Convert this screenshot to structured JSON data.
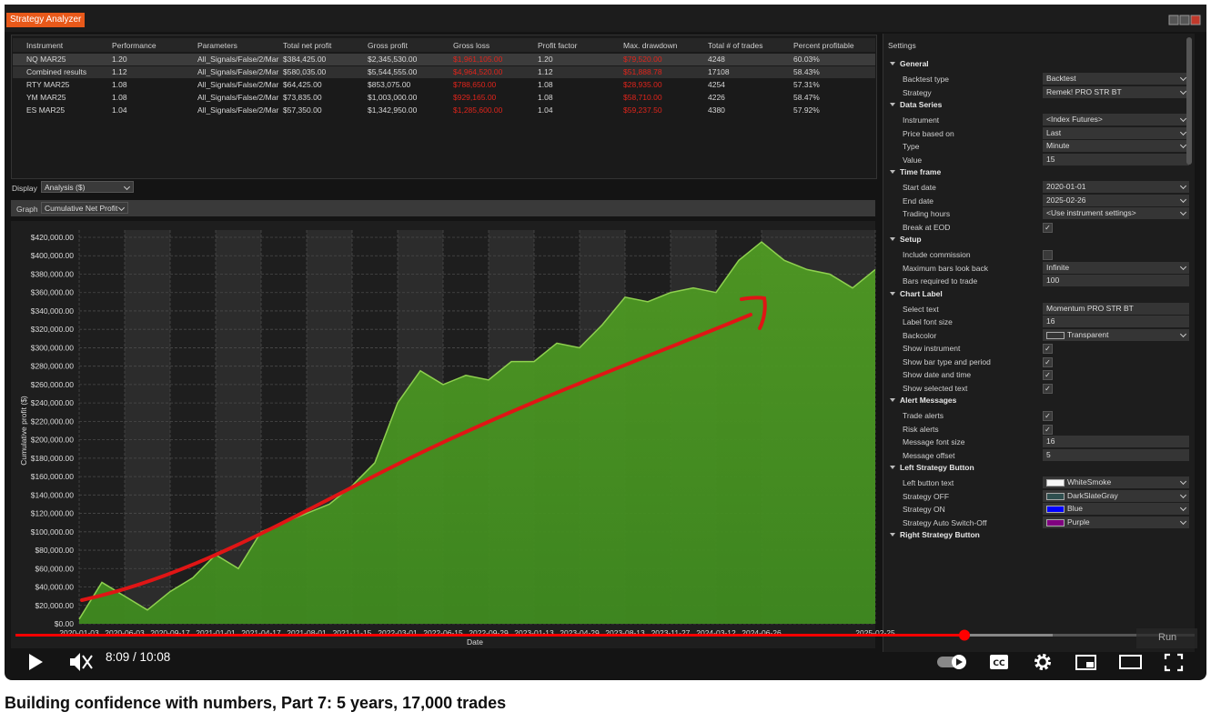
{
  "window": {
    "title": "Strategy Analyzer"
  },
  "table": {
    "columns": [
      "Instrument",
      "Performance",
      "Parameters",
      "Total net profit",
      "Gross profit",
      "Gross loss",
      "Profit factor",
      "Max. drawdown",
      "Total # of trades",
      "Percent profitable"
    ],
    "rows": [
      [
        "NQ MAR25",
        "1.20",
        "All_Signals/False/2/Mar",
        "$384,425.00",
        "$2,345,530.00",
        "$1,961,105.00",
        "1.20",
        "$79,520.00",
        "4248",
        "60.03%"
      ],
      [
        "Combined results",
        "1.12",
        "All_Signals/False/2/Mar",
        "$580,035.00",
        "$5,544,555.00",
        "$4,964,520.00",
        "1.12",
        "$51,888.78",
        "17108",
        "58.43%"
      ],
      [
        "RTY MAR25",
        "1.08",
        "All_Signals/False/2/Mar",
        "$64,425.00",
        "$853,075.00",
        "$788,650.00",
        "1.08",
        "$28,935.00",
        "4254",
        "57.31%"
      ],
      [
        "YM MAR25",
        "1.08",
        "All_Signals/False/2/Mar",
        "$73,835.00",
        "$1,003,000.00",
        "$929,165.00",
        "1.08",
        "$58,710.00",
        "4226",
        "58.47%"
      ],
      [
        "ES MAR25",
        "1.04",
        "All_Signals/False/2/Mar",
        "$57,350.00",
        "$1,342,950.00",
        "$1,285,600.00",
        "1.04",
        "$59,237.50",
        "4380",
        "57.92%"
      ]
    ]
  },
  "display": {
    "label": "Display",
    "value": "Analysis ($)"
  },
  "graph": {
    "label": "Graph",
    "value": "Cumulative Net Profit"
  },
  "chart_data": {
    "type": "area",
    "xlabel": "Date",
    "ylabel": "Cumulative profit ($)",
    "color": "#8fd14f",
    "categories": [
      "2020-01-03",
      null,
      "2020-06-03",
      null,
      "2020-09-17",
      null,
      "2021-01-01",
      null,
      "2021-04-17",
      null,
      "2021-08-01",
      null,
      "2021-11-15",
      null,
      "2022-03-01",
      null,
      "2022-06-15",
      null,
      "2022-09-29",
      null,
      "2023-01-13",
      null,
      "2023-04-29",
      null,
      "2023-08-13",
      null,
      "2023-11-27",
      null,
      "2024-03-12",
      null,
      "2024-06-26",
      null,
      null,
      null,
      null,
      "2025-02-25"
    ],
    "values": [
      5000,
      45000,
      30000,
      15000,
      35000,
      50000,
      75000,
      60000,
      100000,
      110000,
      120000,
      130000,
      150000,
      175000,
      240000,
      275000,
      260000,
      270000,
      265000,
      285000,
      285000,
      305000,
      300000,
      325000,
      355000,
      350000,
      360000,
      365000,
      360000,
      395000,
      415000,
      395000,
      385000,
      380000,
      365000,
      385000
    ],
    "ylim": [
      0,
      420000
    ],
    "yticks": [
      {
        "value": 0,
        "label": "$0.00"
      },
      {
        "value": 20000,
        "label": "$20,000.00"
      },
      {
        "value": 40000,
        "label": "$40,000.00"
      },
      {
        "value": 60000,
        "label": "$60,000.00"
      },
      {
        "value": 80000,
        "label": "$80,000.00"
      },
      {
        "value": 100000,
        "label": "$100,000.00"
      },
      {
        "value": 120000,
        "label": "$120,000.00"
      },
      {
        "value": 140000,
        "label": "$140,000.00"
      },
      {
        "value": 160000,
        "label": "$160,000.00"
      },
      {
        "value": 180000,
        "label": "$180,000.00"
      },
      {
        "value": 200000,
        "label": "$200,000.00"
      },
      {
        "value": 220000,
        "label": "$220,000.00"
      },
      {
        "value": 240000,
        "label": "$240,000.00"
      },
      {
        "value": 260000,
        "label": "$260,000.00"
      },
      {
        "value": 280000,
        "label": "$280,000.00"
      },
      {
        "value": 300000,
        "label": "$300,000.00"
      },
      {
        "value": 320000,
        "label": "$320,000.00"
      },
      {
        "value": 340000,
        "label": "$340,000.00"
      },
      {
        "value": 360000,
        "label": "$360,000.00"
      },
      {
        "value": 380000,
        "label": "$380,000.00"
      },
      {
        "value": 400000,
        "label": "$400,000.00"
      },
      {
        "value": 420000,
        "label": "$420,000.00"
      }
    ],
    "grid": true
  },
  "settings": {
    "title": "Settings",
    "groups": [
      {
        "name": "General",
        "rows": [
          {
            "label": "Backtest type",
            "value": "Backtest",
            "dropdown": true
          },
          {
            "label": "Strategy",
            "value": "Remek! PRO STR BT",
            "dropdown": true
          }
        ]
      },
      {
        "name": "Data Series",
        "rows": [
          {
            "label": "Instrument",
            "value": "<Index Futures>",
            "dropdown": true
          },
          {
            "label": "Price based on",
            "value": "Last",
            "dropdown": true
          },
          {
            "label": "Type",
            "value": "Minute",
            "dropdown": true
          },
          {
            "label": "Value",
            "value": "15"
          }
        ]
      },
      {
        "name": "Time frame",
        "rows": [
          {
            "label": "Start date",
            "value": "2020-01-01",
            "dropdown": true
          },
          {
            "label": "End date",
            "value": "2025-02-26",
            "dropdown": true
          },
          {
            "label": "Trading hours",
            "value": "<Use instrument settings>",
            "dropdown": true
          },
          {
            "label": "Break at EOD",
            "checked": true
          }
        ]
      },
      {
        "name": "Setup",
        "rows": [
          {
            "label": "Include commission",
            "checked": false
          },
          {
            "label": "Maximum bars look back",
            "value": "Infinite",
            "dropdown": true
          },
          {
            "label": "Bars required to trade",
            "value": "100"
          }
        ]
      },
      {
        "name": "Chart Label",
        "rows": [
          {
            "label": "Select text",
            "value": "Momentum PRO STR BT"
          },
          {
            "label": "Label font size",
            "value": "16"
          },
          {
            "label": "Backcolor",
            "value": "Transparent",
            "dropdown": true,
            "swatch": "transparent"
          },
          {
            "label": "Show instrument",
            "checked": true
          },
          {
            "label": "Show bar type and period",
            "checked": true
          },
          {
            "label": "Show date and time",
            "checked": true
          },
          {
            "label": "Show selected text",
            "checked": true
          }
        ]
      },
      {
        "name": "Alert Messages",
        "rows": [
          {
            "label": "Trade alerts",
            "checked": true
          },
          {
            "label": "Risk alerts",
            "checked": true
          },
          {
            "label": "Message font size",
            "value": "16"
          },
          {
            "label": "Message offset",
            "value": "5"
          }
        ]
      },
      {
        "name": "Left Strategy Button",
        "rows": [
          {
            "label": "Left button text",
            "value": "WhiteSmoke",
            "dropdown": true,
            "swatch": "#f5f5f5"
          },
          {
            "label": "Strategy OFF",
            "value": "DarkSlateGray",
            "dropdown": true,
            "swatch": "#2f4f4f"
          },
          {
            "label": "Strategy ON",
            "value": "Blue",
            "dropdown": true,
            "swatch": "#0000ff"
          },
          {
            "label": "Strategy Auto Switch-Off",
            "value": "Purple",
            "dropdown": true,
            "swatch": "#800080"
          }
        ]
      },
      {
        "name": "Right Strategy Button",
        "rows": []
      }
    ]
  },
  "player": {
    "time": "8:09 / 10:08",
    "button": "Run",
    "progress": 0.8
  },
  "video_title": "Building confidence with numbers, Part 7: 5 years, 17,000 trades"
}
